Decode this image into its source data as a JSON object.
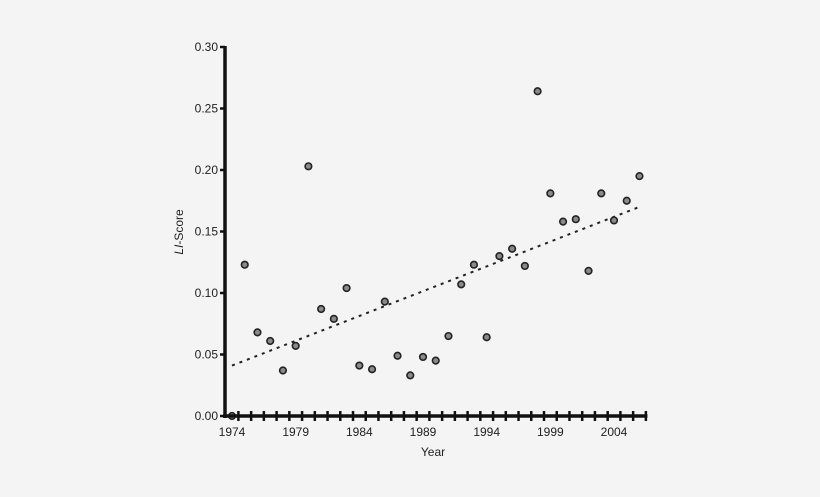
{
  "chart_data": {
    "type": "scatter",
    "title": "",
    "xlabel": "Year",
    "ylabel": "LI-Score",
    "ylabel_italic_part": "LI",
    "ylabel_rest": "-Score",
    "xlim": [
      1974,
      2006
    ],
    "ylim": [
      0.0,
      0.3
    ],
    "x_ticks": [
      1974,
      1979,
      1984,
      1989,
      1994,
      1999,
      2004
    ],
    "x_tick_labels": [
      "1974",
      "1979",
      "1984",
      "1989",
      "1994",
      "1999",
      "2004"
    ],
    "y_ticks": [
      0.0,
      0.05,
      0.1,
      0.15,
      0.2,
      0.25,
      0.3
    ],
    "y_tick_labels": [
      "0.00",
      "0.05",
      "0.10",
      "0.15",
      "0.20",
      "0.25",
      "0.30"
    ],
    "grid": false,
    "legend": null,
    "series": [
      {
        "name": "LI-Score",
        "style": "markers",
        "x": [
          1974,
          1975,
          1976,
          1977,
          1978,
          1979,
          1980,
          1981,
          1982,
          1983,
          1984,
          1985,
          1986,
          1987,
          1988,
          1989,
          1990,
          1991,
          1992,
          1993,
          1994,
          1995,
          1996,
          1997,
          1998,
          1999,
          2000,
          2001,
          2002,
          2003,
          2004,
          2005,
          2006
        ],
        "values": [
          0.0,
          0.123,
          0.068,
          0.061,
          0.037,
          0.057,
          0.203,
          0.087,
          0.079,
          0.104,
          0.041,
          0.038,
          0.093,
          0.049,
          0.033,
          0.048,
          0.045,
          0.065,
          0.107,
          0.123,
          0.064,
          0.13,
          0.136,
          0.122,
          0.264,
          0.181,
          0.158,
          0.16,
          0.118,
          0.181,
          0.159,
          0.175,
          0.195
        ]
      },
      {
        "name": "Linear trend",
        "style": "dotted-line",
        "x": [
          1974,
          2006
        ],
        "values": [
          0.041,
          0.17
        ]
      }
    ],
    "colors": {
      "marker_fill": "#8a8a8a",
      "marker_edge": "#222222",
      "axis": "#111111",
      "trend": "#222222",
      "background": "#f4f4f4"
    }
  }
}
